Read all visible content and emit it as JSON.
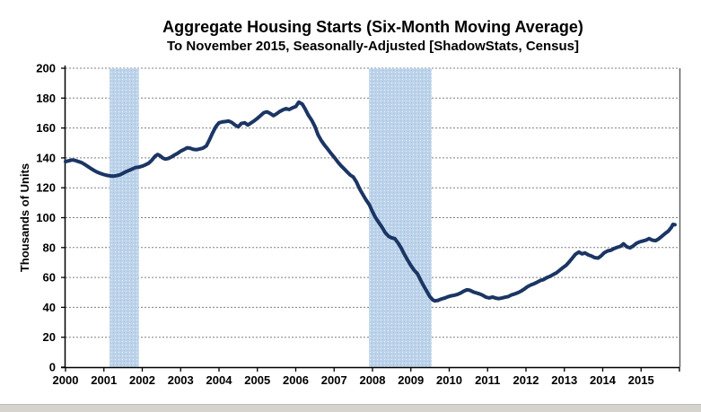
{
  "title": "Aggregate Housing Starts (Six-Month Moving Average)",
  "subtitle": "To November 2015, Seasonally-Adjusted [ShadowStats, Census]",
  "colors": {
    "line": "#1b3564",
    "band_base": "#bdd3ea",
    "band_dot_light": "#e8f0fa",
    "band_dot_dark": "#9ec3e0",
    "grid": "#808080",
    "axis": "#000000",
    "right_border": "#595959",
    "background": "#ffffff"
  },
  "chart_data": {
    "type": "line",
    "title": "Aggregate Housing Starts (Six-Month Moving Average)",
    "subtitle": "To November 2015, Seasonally-Adjusted [ShadowStats, Census]",
    "ylabel": "Thousands of Units",
    "xlabel": "",
    "ylim": [
      0,
      200
    ],
    "yticks": [
      0,
      20,
      40,
      60,
      80,
      100,
      120,
      140,
      160,
      180,
      200
    ],
    "xlim": [
      2000,
      2016
    ],
    "xticks": [
      2000,
      2001,
      2002,
      2003,
      2004,
      2005,
      2006,
      2007,
      2008,
      2009,
      2010,
      2011,
      2012,
      2013,
      2014,
      2015
    ],
    "grid": "horizontal-dashed",
    "legend": "none",
    "recession_bands": [
      [
        2001.15,
        2001.91
      ],
      [
        2007.91,
        2009.54
      ]
    ],
    "series": [
      {
        "name": "Housing Starts (6-Month Moving Average)",
        "x": [
          2000.0,
          2000.08,
          2000.17,
          2000.25,
          2000.33,
          2000.42,
          2000.5,
          2000.58,
          2000.67,
          2000.75,
          2000.83,
          2000.92,
          2001.0,
          2001.08,
          2001.17,
          2001.25,
          2001.33,
          2001.42,
          2001.5,
          2001.58,
          2001.67,
          2001.75,
          2001.83,
          2001.92,
          2002.0,
          2002.08,
          2002.17,
          2002.25,
          2002.33,
          2002.4,
          2002.46,
          2002.54,
          2002.6,
          2002.67,
          2002.75,
          2002.83,
          2002.92,
          2003.0,
          2003.08,
          2003.17,
          2003.25,
          2003.33,
          2003.42,
          2003.5,
          2003.58,
          2003.67,
          2003.75,
          2003.83,
          2003.92,
          2004.0,
          2004.08,
          2004.17,
          2004.25,
          2004.33,
          2004.42,
          2004.5,
          2004.58,
          2004.67,
          2004.75,
          2004.83,
          2004.92,
          2005.0,
          2005.08,
          2005.17,
          2005.25,
          2005.33,
          2005.42,
          2005.5,
          2005.58,
          2005.67,
          2005.75,
          2005.83,
          2005.92,
          2006.0,
          2006.08,
          2006.17,
          2006.25,
          2006.33,
          2006.42,
          2006.5,
          2006.58,
          2006.67,
          2006.75,
          2006.83,
          2006.92,
          2007.0,
          2007.08,
          2007.17,
          2007.25,
          2007.33,
          2007.42,
          2007.5,
          2007.58,
          2007.67,
          2007.75,
          2007.83,
          2007.92,
          2008.0,
          2008.08,
          2008.17,
          2008.25,
          2008.33,
          2008.42,
          2008.5,
          2008.58,
          2008.67,
          2008.75,
          2008.83,
          2008.92,
          2009.0,
          2009.08,
          2009.17,
          2009.25,
          2009.33,
          2009.42,
          2009.5,
          2009.58,
          2009.63,
          2009.71,
          2009.79,
          2009.88,
          2009.96,
          2010.04,
          2010.13,
          2010.21,
          2010.29,
          2010.38,
          2010.46,
          2010.54,
          2010.63,
          2010.71,
          2010.79,
          2010.88,
          2010.96,
          2011.04,
          2011.13,
          2011.21,
          2011.29,
          2011.38,
          2011.46,
          2011.54,
          2011.63,
          2011.71,
          2011.79,
          2011.88,
          2011.96,
          2012.04,
          2012.13,
          2012.21,
          2012.29,
          2012.38,
          2012.46,
          2012.54,
          2012.63,
          2012.71,
          2012.79,
          2012.88,
          2012.96,
          2013.04,
          2013.13,
          2013.21,
          2013.29,
          2013.38,
          2013.46,
          2013.54,
          2013.63,
          2013.71,
          2013.79,
          2013.88,
          2013.96,
          2014.04,
          2014.13,
          2014.21,
          2014.29,
          2014.38,
          2014.46,
          2014.54,
          2014.63,
          2014.71,
          2014.79,
          2014.88,
          2014.96,
          2015.04,
          2015.13,
          2015.21,
          2015.29,
          2015.38,
          2015.46,
          2015.54,
          2015.63,
          2015.71,
          2015.79,
          2015.83,
          2015.88
        ],
        "y": [
          137.5,
          138.0,
          138.6,
          138.3,
          137.6,
          136.8,
          135.6,
          134.3,
          132.8,
          131.5,
          130.4,
          129.5,
          128.8,
          128.3,
          127.9,
          127.8,
          128.1,
          128.7,
          129.7,
          130.8,
          131.8,
          132.7,
          133.6,
          133.9,
          134.5,
          135.3,
          136.5,
          138.5,
          141.0,
          142.3,
          141.5,
          139.8,
          139.2,
          139.5,
          140.5,
          141.8,
          143.0,
          144.5,
          145.5,
          146.8,
          146.5,
          145.7,
          145.5,
          146.0,
          146.5,
          148.0,
          152.0,
          156.5,
          161.0,
          163.5,
          164.0,
          164.3,
          164.6,
          163.8,
          162.0,
          160.8,
          163.0,
          163.5,
          162.0,
          163.3,
          164.8,
          166.5,
          168.2,
          170.3,
          170.8,
          169.8,
          168.3,
          169.5,
          171.0,
          172.2,
          173.0,
          172.4,
          173.6,
          174.3,
          177.3,
          176.0,
          172.5,
          168.5,
          165.0,
          161.0,
          155.5,
          151.5,
          148.5,
          146.0,
          143.0,
          140.5,
          137.8,
          135.0,
          133.0,
          130.8,
          128.5,
          127.2,
          124.0,
          119.0,
          115.5,
          112.0,
          108.5,
          104.0,
          100.0,
          96.5,
          93.5,
          90.0,
          87.5,
          86.5,
          86.0,
          83.0,
          79.5,
          75.5,
          71.5,
          68.0,
          65.0,
          62.5,
          58.5,
          54.5,
          50.5,
          47.0,
          44.8,
          44.3,
          44.7,
          45.5,
          46.2,
          47.0,
          47.6,
          48.1,
          48.6,
          49.5,
          50.8,
          51.7,
          51.4,
          50.3,
          49.6,
          49.0,
          48.0,
          46.8,
          46.3,
          46.9,
          46.2,
          45.8,
          46.3,
          46.8,
          47.2,
          48.4,
          49.0,
          49.8,
          51.0,
          52.3,
          53.8,
          55.0,
          55.8,
          56.8,
          58.0,
          58.6,
          59.8,
          60.8,
          62.0,
          63.0,
          64.8,
          66.5,
          68.0,
          70.5,
          73.0,
          75.5,
          77.0,
          75.8,
          76.4,
          75.0,
          74.3,
          73.3,
          73.0,
          74.5,
          76.5,
          77.8,
          78.2,
          79.3,
          80.2,
          80.8,
          82.5,
          80.5,
          79.8,
          81.0,
          82.8,
          83.8,
          84.3,
          85.0,
          86.0,
          85.0,
          84.6,
          85.8,
          87.5,
          89.5,
          91.0,
          93.5,
          95.5,
          95.3
        ]
      }
    ]
  }
}
